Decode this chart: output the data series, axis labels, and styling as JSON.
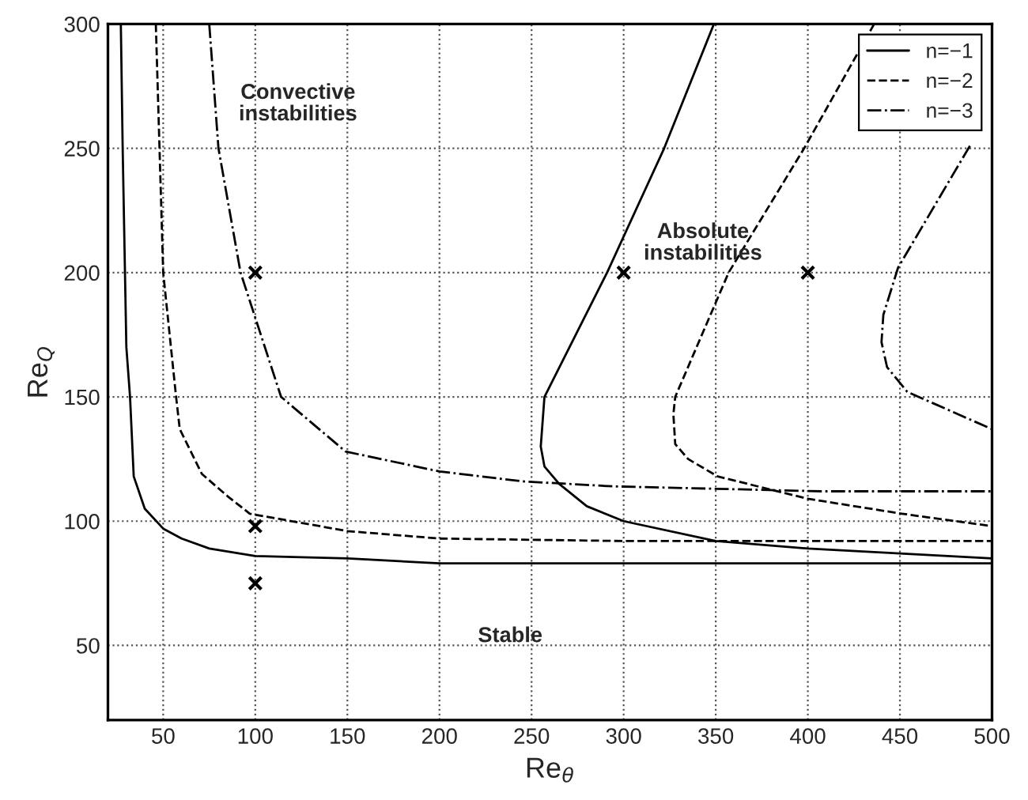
{
  "chart_data": {
    "type": "line",
    "xlabel": "Re$_{θ}$",
    "ylabel": "Re$_{Q}$",
    "xlim": [
      20,
      500
    ],
    "ylim": [
      20,
      300
    ],
    "xticks": [
      50,
      100,
      150,
      200,
      250,
      300,
      350,
      400,
      450,
      500
    ],
    "yticks": [
      50,
      100,
      150,
      200,
      250,
      300
    ],
    "grid": true,
    "legend": "top right",
    "marker": "none",
    "annotations": [
      "Convective instabilities",
      "Absolute instabilities",
      "Stable"
    ],
    "series": [
      {
        "name": "n=−1",
        "color": "#000000",
        "line_style": "solid",
        "x": [
          27,
          28,
          30,
          32,
          34,
          40,
          50,
          60,
          75,
          100,
          150,
          200,
          300,
          500,
          null,
          349,
          322,
          291,
          257,
          255,
          257,
          265,
          280,
          300,
          350,
          400,
          450,
          500
        ],
        "values": [
          300,
          250,
          170,
          150,
          118,
          105,
          97,
          93,
          89,
          86,
          85,
          83,
          83,
          83,
          null,
          300,
          250,
          200,
          150,
          130,
          122,
          115,
          106,
          100,
          92,
          89,
          87,
          85
        ]
      },
      {
        "name": "n=−2",
        "color": "#000000",
        "line_style": "dashed",
        "x": [
          46,
          48,
          50,
          57,
          59,
          71,
          85,
          97,
          150,
          200,
          300,
          500,
          null,
          436,
          398,
          357,
          328,
          327,
          328,
          335,
          351,
          400,
          451,
          500
        ],
        "values": [
          300,
          250,
          200,
          150,
          137,
          119,
          110,
          103,
          96,
          93,
          92,
          92,
          null,
          300,
          250,
          200,
          150,
          143,
          131,
          125,
          118,
          109,
          103,
          98
        ]
      },
      {
        "name": "n=−3",
        "color": "#000000",
        "line_style": "dashdot",
        "x": [
          75,
          80,
          92,
          114,
          149,
          200,
          245,
          294,
          408,
          500,
          null,
          488,
          449,
          441,
          440,
          443,
          454,
          500
        ],
        "values": [
          300,
          250,
          200,
          150,
          128,
          120,
          116,
          114,
          112,
          112,
          null,
          251,
          202,
          183,
          172,
          162,
          152,
          137
        ]
      },
      {
        "type": "scatter",
        "marker": "cross",
        "color": "#000000",
        "x": [
          100,
          100,
          100,
          300,
          400
        ],
        "values": [
          200,
          98,
          75,
          200,
          200
        ]
      }
    ]
  }
}
